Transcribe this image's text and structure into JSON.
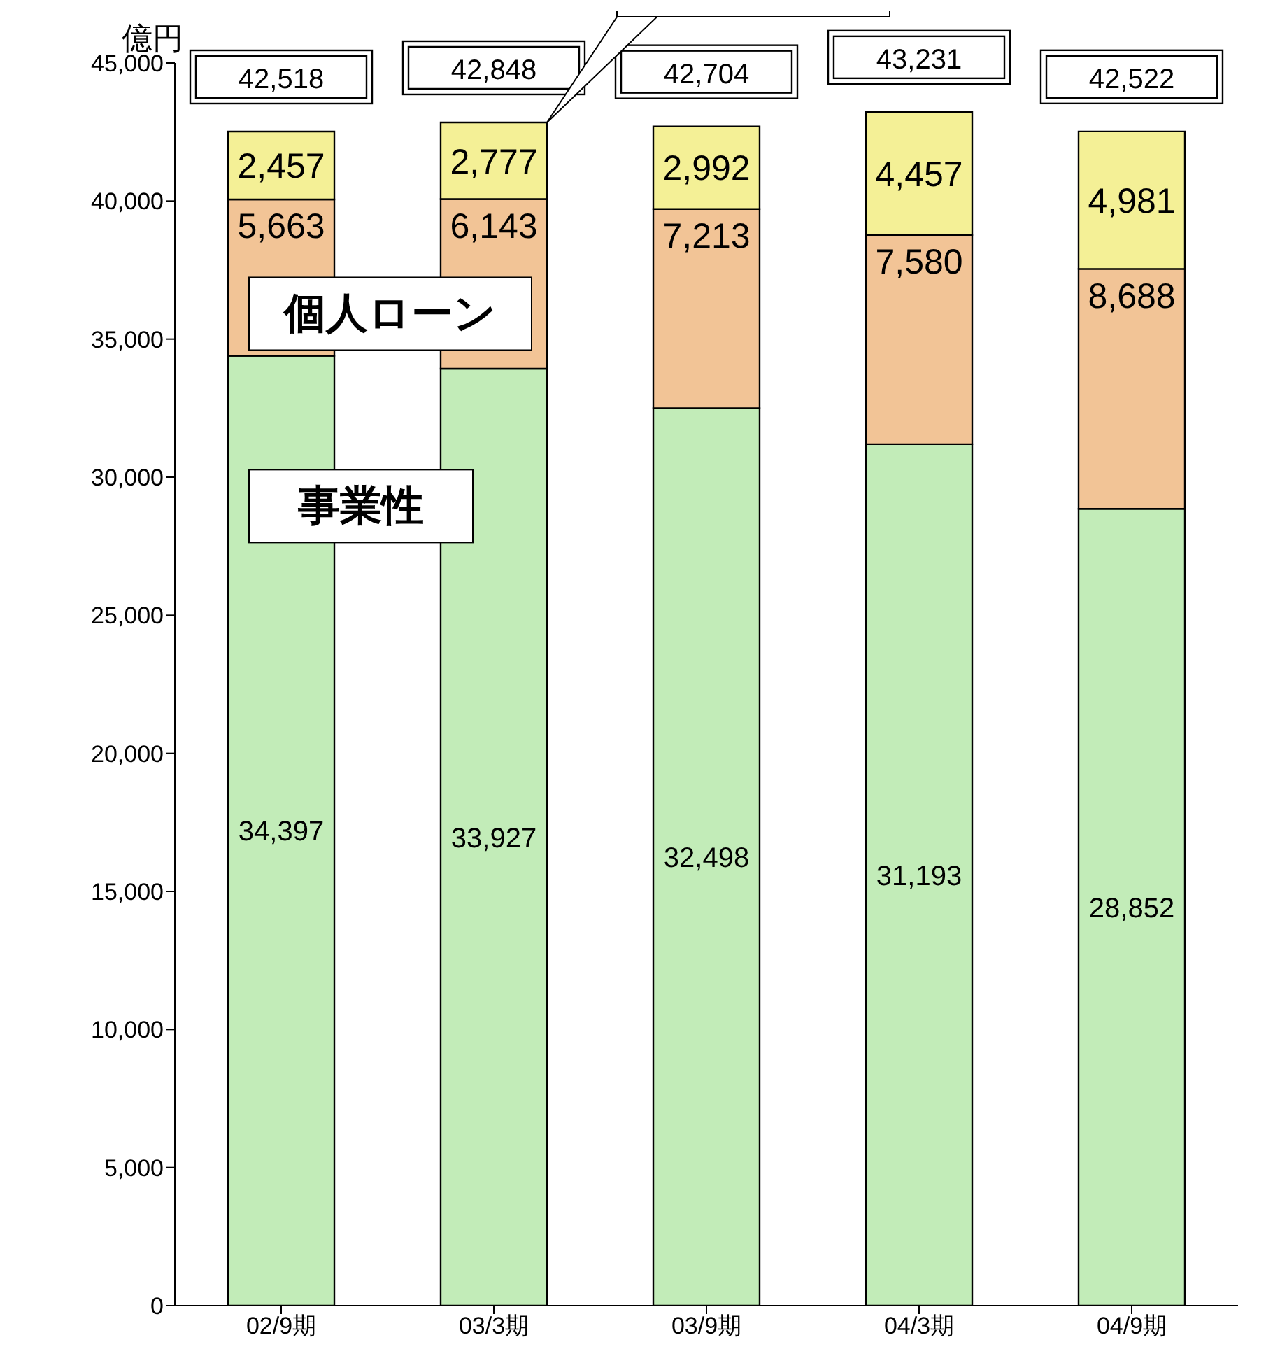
{
  "chart_data": {
    "type": "bar",
    "stacked": true,
    "ylabel": "億円",
    "categories": [
      "02/9期",
      "03/3期",
      "03/9期",
      "04/3期",
      "04/9期"
    ],
    "series": [
      {
        "name": "事業性",
        "color": "#c2ecb8",
        "values": [
          34397,
          33927,
          32498,
          31193,
          28852
        ],
        "value_labels": [
          "34,397",
          "33,927",
          "32,498",
          "31,193",
          "28,852"
        ]
      },
      {
        "name": "個人ローン",
        "color": "#f2c496",
        "values": [
          5663,
          6143,
          7213,
          7580,
          8688
        ],
        "value_labels": [
          "5,663",
          "6,143",
          "7,213",
          "7,580",
          "8,688"
        ]
      },
      {
        "color": "#f4f096",
        "values": [
          2457,
          2777,
          2992,
          4457,
          4981
        ],
        "value_labels": [
          "2,457",
          "2,777",
          "2,992",
          "4,457",
          "4,981"
        ]
      }
    ],
    "totals": [
      "42,518",
      "42,848",
      "42,704",
      "43,231",
      "42,522"
    ],
    "legend": false,
    "ylim": [
      0,
      45000
    ],
    "yticks": [
      0,
      {
        "value": 5000,
        "label": "5,000"
      },
      {
        "value": 10000,
        "label": "10,000"
      },
      {
        "value": 15000,
        "label": "15,000"
      },
      {
        "value": 20000,
        "label": "20,000"
      },
      {
        "value": 25000,
        "label": "25,000"
      },
      {
        "value": 30000,
        "label": "30,000"
      },
      {
        "value": 35000,
        "label": "35,000"
      },
      {
        "value": 40000,
        "label": "40,000"
      },
      {
        "value": 45000,
        "label": "45,000"
      }
    ],
    "grid": false
  }
}
